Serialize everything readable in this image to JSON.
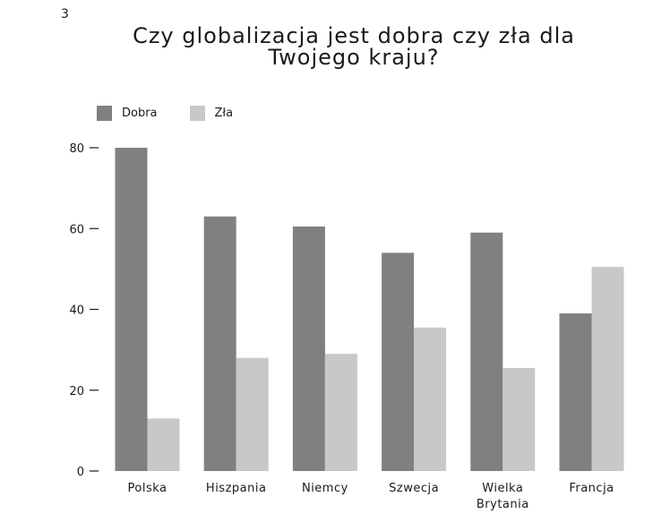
{
  "page_number": "3",
  "chart_data": {
    "type": "bar",
    "title_lines": [
      "Czy globalizacja jest dobra czy zła dla",
      "Twojego kraju?"
    ],
    "categories": [
      [
        "Polska"
      ],
      [
        "Hiszpania"
      ],
      [
        "Niemcy"
      ],
      [
        "Szwecja"
      ],
      [
        "Wielka",
        "Brytania"
      ],
      [
        "Francja"
      ]
    ],
    "series": [
      {
        "name": "Dobra",
        "color": "#808083",
        "values": [
          80,
          63,
          60.5,
          54,
          59,
          39
        ]
      },
      {
        "name": "Zła",
        "color": "#c8c8ca",
        "values": [
          13,
          28,
          29,
          35.5,
          25.5,
          50.5
        ]
      }
    ],
    "y_ticks": [
      "0",
      "20",
      "40",
      "60",
      "80"
    ],
    "ylim": [
      0,
      80
    ],
    "grid": false,
    "legend_position": "top-left"
  }
}
